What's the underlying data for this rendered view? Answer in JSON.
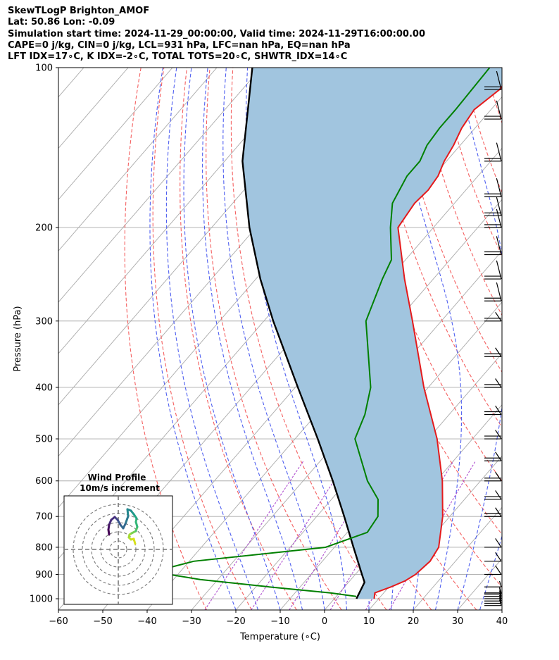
{
  "header": {
    "line1": "SkewTLogP Brighton_AMOF",
    "line2": "Lat: 50.86   Lon: -0.09",
    "line3": "Simulation start time: 2024-11-29_00:00:00, Valid time: 2024-11-29T16:00:00.00",
    "line4": "CAPE=0 j/kg, CIN=0 j/kg, LCL=931 hPa, LFC=nan hPa, EQ=nan hPa",
    "line5": "LFT IDX=17∘C, K IDX=-2∘C, TOTAL TOTS=20∘C, SHWTR_IDX=14∘C"
  },
  "chart_data": {
    "type": "line",
    "subtype": "skew-t log-p",
    "xlabel": "Temperature (∘C)",
    "ylabel": "Pressure (hPa)",
    "xlim": [
      -60,
      40
    ],
    "ylim": [
      1050,
      100
    ],
    "x_ticks": [
      "−60",
      "−50",
      "−40",
      "−30",
      "−20",
      "−10",
      "0",
      "10",
      "20",
      "30",
      "40"
    ],
    "x_tick_values": [
      -60,
      -50,
      -40,
      -30,
      -20,
      -10,
      0,
      10,
      20,
      30,
      40
    ],
    "y_ticks": [
      "1000",
      "900",
      "800",
      "700",
      "600",
      "500",
      "400",
      "300",
      "200",
      "100"
    ],
    "y_tick_values": [
      1000,
      900,
      800,
      700,
      600,
      500,
      400,
      300,
      200,
      100
    ],
    "y_scale": "log",
    "grid": true,
    "colors": {
      "temperature": "#e41a1c",
      "dewpoint": "#008000",
      "parcel": "#000000",
      "cape_fill": "#a1c5df",
      "dry_adiabat": "#f46060",
      "moist_adiabat": "#5060f0",
      "mixing_ratio": "#b050d0",
      "isotherm": "#aaaaaa"
    },
    "series": [
      {
        "role": "temperature",
        "points": [
          [
            1000,
            9.0
          ],
          [
            975,
            8.0
          ],
          [
            950,
            10.5
          ],
          [
            925,
            12.5
          ],
          [
            900,
            13.6
          ],
          [
            850,
            14.3
          ],
          [
            800,
            13.5
          ],
          [
            700,
            8.4
          ],
          [
            600,
            1.4
          ],
          [
            500,
            -8.0
          ],
          [
            400,
            -21.0
          ],
          [
            300,
            -36.5
          ],
          [
            250,
            -46.5
          ],
          [
            200,
            -58.0
          ],
          [
            180,
            -59.0
          ],
          [
            170,
            -58.5
          ],
          [
            160,
            -59.0
          ],
          [
            150,
            -60.5
          ],
          [
            140,
            -61.5
          ],
          [
            130,
            -63.0
          ],
          [
            120,
            -63.8
          ],
          [
            110,
            -62.0
          ],
          [
            100,
            -62.3
          ]
        ]
      },
      {
        "role": "dewpoint",
        "points": [
          [
            990,
            4.5
          ],
          [
            975,
            -2.0
          ],
          [
            950,
            -17.0
          ],
          [
            920,
            -34.0
          ],
          [
            900,
            -42.0
          ],
          [
            875,
            -43.5
          ],
          [
            850,
            -39.0
          ],
          [
            800,
            -12.0
          ],
          [
            750,
            -5.5
          ],
          [
            700,
            -6.2
          ],
          [
            650,
            -9.5
          ],
          [
            600,
            -15.5
          ],
          [
            500,
            -26.5
          ],
          [
            450,
            -29.0
          ],
          [
            400,
            -33.0
          ],
          [
            300,
            -47.0
          ],
          [
            250,
            -51.5
          ],
          [
            230,
            -53.2
          ],
          [
            200,
            -59.7
          ],
          [
            180,
            -64.0
          ],
          [
            160,
            -66.0
          ],
          [
            150,
            -66.0
          ],
          [
            140,
            -67.5
          ],
          [
            130,
            -68.0
          ],
          [
            120,
            -68.0
          ],
          [
            100,
            -68.5
          ]
        ]
      },
      {
        "role": "parcel",
        "points": [
          [
            1000,
            5.0
          ],
          [
            931,
            3.6
          ],
          [
            900,
            1.5
          ],
          [
            850,
            -2.0
          ],
          [
            800,
            -5.7
          ],
          [
            700,
            -13.8
          ],
          [
            600,
            -23.3
          ],
          [
            500,
            -34.9
          ],
          [
            400,
            -49.4
          ],
          [
            300,
            -67.9
          ],
          [
            250,
            -79.0
          ],
          [
            200,
            -91.5
          ],
          [
            150,
            -106.0
          ],
          [
            100,
            -122.0
          ]
        ]
      }
    ],
    "wind_barbs": {
      "levels_hpa": [
        1030,
        1020,
        1010,
        1000,
        990,
        980,
        975,
        950,
        900,
        850,
        800,
        700,
        650,
        600,
        550,
        500,
        450,
        400,
        350,
        300,
        275,
        250,
        225,
        200,
        190,
        175,
        150,
        125,
        110
      ]
    },
    "hodograph": {
      "title": "Wind Profile",
      "subtitle": "10m/s increment"
    }
  }
}
